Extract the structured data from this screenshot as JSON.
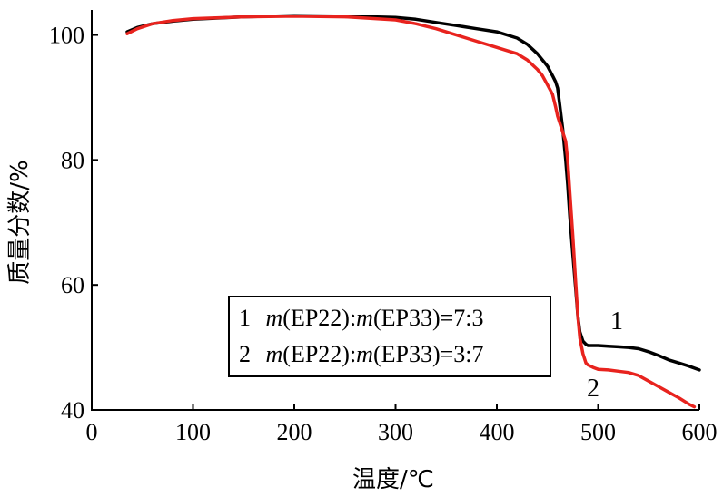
{
  "chart_data": {
    "type": "line",
    "xlabel": "温度/℃",
    "ylabel": "质量分数/%",
    "xlim": [
      0,
      600
    ],
    "ylim": [
      40,
      104
    ],
    "xticks": [
      "0",
      "100",
      "200",
      "300",
      "400",
      "500",
      "600"
    ],
    "yticks": [
      "40",
      "60",
      "80",
      "100"
    ],
    "grid": false,
    "legend_placement": "bottom-center",
    "legend": [
      {
        "num": "1",
        "prefix": "m",
        "mid": "(EP22):",
        "prefix2": "m",
        "tail": "(EP33)=7:3"
      },
      {
        "num": "2",
        "prefix": "m",
        "mid": "(EP22):",
        "prefix2": "m",
        "tail": "(EP33)=3:7"
      }
    ],
    "series": [
      {
        "name": "1",
        "color": "#000000",
        "label_text": "1",
        "x": [
          35,
          45,
          60,
          80,
          100,
          150,
          200,
          250,
          300,
          320,
          340,
          360,
          380,
          400,
          420,
          430,
          440,
          450,
          455,
          458,
          460,
          462,
          465,
          468,
          470,
          472,
          475,
          478,
          480,
          482,
          485,
          488,
          490,
          492,
          495,
          500,
          510,
          520,
          530,
          540,
          550,
          560,
          570,
          580,
          590,
          600
        ],
        "y": [
          100.5,
          101.2,
          101.8,
          102.2,
          102.5,
          102.9,
          103.1,
          103.0,
          102.8,
          102.5,
          102.0,
          101.5,
          101.0,
          100.5,
          99.5,
          98.5,
          97.0,
          95.0,
          93.5,
          92.5,
          91.5,
          89.0,
          85.0,
          80.0,
          76.0,
          71.0,
          65.0,
          59.0,
          55.0,
          52.5,
          51.0,
          50.5,
          50.3,
          50.3,
          50.3,
          50.3,
          50.2,
          50.1,
          50.0,
          49.8,
          49.3,
          48.7,
          48.0,
          47.5,
          47.0,
          46.4
        ]
      },
      {
        "name": "2",
        "color": "#e8231e",
        "label_text": "2",
        "x": [
          35,
          45,
          60,
          80,
          100,
          150,
          200,
          250,
          300,
          320,
          340,
          360,
          380,
          400,
          410,
          420,
          430,
          440,
          445,
          450,
          455,
          458,
          460,
          462,
          465,
          468,
          470,
          472,
          475,
          478,
          480,
          482,
          485,
          488,
          490,
          495,
          500,
          510,
          520,
          530,
          540,
          550,
          560,
          570,
          580,
          590,
          595
        ],
        "y": [
          100.2,
          101.0,
          101.8,
          102.3,
          102.6,
          102.9,
          103.0,
          102.9,
          102.4,
          101.8,
          101.0,
          100.0,
          99.0,
          98.0,
          97.5,
          97.0,
          96.0,
          94.5,
          93.5,
          92.0,
          90.5,
          88.5,
          87.0,
          86.0,
          84.5,
          83.0,
          80.0,
          75.0,
          68.0,
          60.0,
          55.0,
          51.5,
          49.0,
          47.5,
          47.2,
          46.8,
          46.5,
          46.4,
          46.2,
          46.0,
          45.5,
          44.6,
          43.7,
          42.8,
          41.9,
          40.9,
          40.5
        ]
      }
    ]
  }
}
